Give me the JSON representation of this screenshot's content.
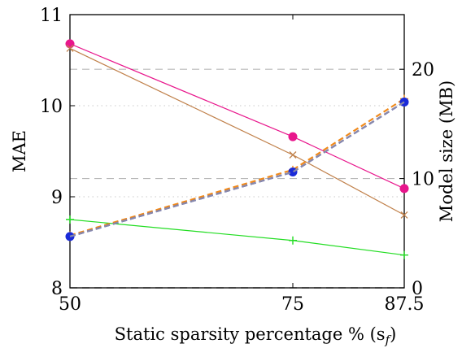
{
  "chart_data": {
    "type": "line",
    "title": "",
    "xlabel": "Static sparsity percentage % (s",
    "xlabel_sub": "f",
    "xlabel_close": ")",
    "ylabel_left": "MAE",
    "ylabel_right": "Model size (MB)",
    "x": [
      50,
      75,
      87.5
    ],
    "x_tick_labels": [
      "50",
      "75",
      "87.5"
    ],
    "xlim": [
      50,
      87.5
    ],
    "ylim_left": [
      8,
      11
    ],
    "yticks_left": [
      8,
      9,
      10,
      11
    ],
    "ylim_right": [
      0,
      25
    ],
    "yticks_right": [
      0,
      10,
      20
    ],
    "grid": "dashed horizontal lines at right-axis 0, 10, 20; dotted at left-axis 9, 10",
    "legend": "none",
    "series": [
      {
        "axis": "left",
        "color": "#e8168c",
        "style": "solid",
        "marker": "circle",
        "values": [
          10.68,
          9.66,
          9.09
        ]
      },
      {
        "axis": "left",
        "color": "#c0804a",
        "style": "solid",
        "marker": "x",
        "values": [
          10.63,
          9.46,
          8.8
        ]
      },
      {
        "axis": "left",
        "color": "#22dd22",
        "style": "solid",
        "marker": "plus",
        "values": [
          8.75,
          8.52,
          8.36
        ]
      },
      {
        "axis": "right",
        "color": "#f08a1c",
        "style": "dashed",
        "marker": "plus",
        "values": [
          4.8,
          10.8,
          17.3
        ]
      },
      {
        "axis": "right",
        "color": "#1a2ad8",
        "style": "dashed",
        "marker": "circle",
        "values": [
          4.7,
          10.6,
          17.0
        ]
      },
      {
        "axis": "right",
        "color": "#8a8aa8",
        "style": "dashed",
        "marker": "none",
        "values": [
          4.7,
          10.6,
          17.0
        ]
      }
    ]
  }
}
